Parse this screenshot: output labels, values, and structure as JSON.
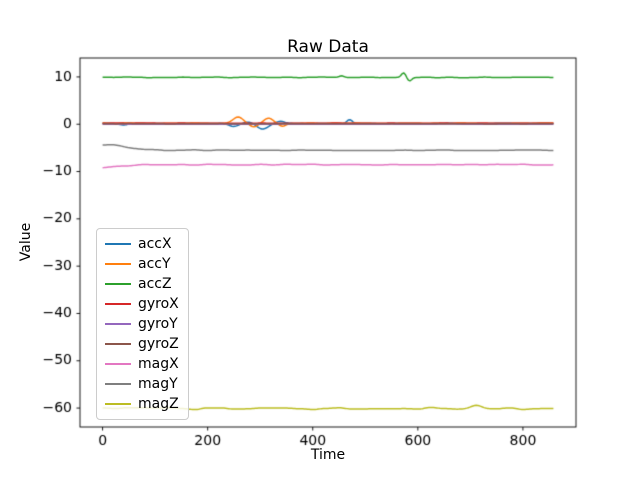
{
  "chart_data": {
    "type": "line",
    "title": "Raw Data",
    "xlabel": "Time",
    "ylabel": "Value",
    "xlim": [
      -43,
      901
    ],
    "ylim": [
      -64,
      14
    ],
    "x_range": [
      0,
      858
    ],
    "sample_step": 3,
    "xticks": [
      0,
      200,
      400,
      600,
      800
    ],
    "xtick_labels": [
      "0",
      "200",
      "400",
      "600",
      "800"
    ],
    "yticks": [
      10,
      0,
      -10,
      -20,
      -30,
      -40,
      -50,
      -60
    ],
    "ytick_labels": [
      "10",
      "0",
      "−10",
      "−20",
      "−30",
      "−40",
      "−50",
      "−60"
    ],
    "grid": false,
    "legend_position": "center-left-inside",
    "background": "#ffffff",
    "axis_color": "#000000",
    "legend_edge_color": "#cccccc",
    "series": [
      {
        "name": "accX",
        "color": "#1f77b4",
        "baseline": 0.15,
        "noise_amp": 0.07,
        "noise_step": 22,
        "seed": 11,
        "features": [
          {
            "x": 40,
            "w": 12,
            "a": -0.35
          },
          {
            "x": 250,
            "w": 12,
            "a": -0.6
          },
          {
            "x": 278,
            "w": 10,
            "a": 0.35
          },
          {
            "x": 305,
            "w": 14,
            "a": -1.15
          },
          {
            "x": 338,
            "w": 10,
            "a": 0.45
          },
          {
            "x": 470,
            "w": 7,
            "a": 0.85
          }
        ]
      },
      {
        "name": "accY",
        "color": "#ff7f0e",
        "baseline": 0.2,
        "noise_amp": 0.07,
        "noise_step": 22,
        "seed": 22,
        "features": [
          {
            "x": 258,
            "w": 13,
            "a": 1.35
          },
          {
            "x": 288,
            "w": 11,
            "a": -0.75
          },
          {
            "x": 316,
            "w": 12,
            "a": 1.05
          },
          {
            "x": 342,
            "w": 9,
            "a": -0.6
          }
        ]
      },
      {
        "name": "accZ",
        "color": "#2ca02c",
        "baseline": 9.9,
        "noise_amp": 0.07,
        "noise_step": 22,
        "seed": 33,
        "features": [
          {
            "x": 455,
            "w": 6,
            "a": 0.35
          },
          {
            "x": 573,
            "w": 6,
            "a": 1.0
          },
          {
            "x": 584,
            "w": 6,
            "a": -0.75
          }
        ]
      },
      {
        "name": "gyroX",
        "color": "#d62728",
        "baseline": 0.22,
        "noise_amp": 0.03,
        "noise_step": 25,
        "seed": 44,
        "features": []
      },
      {
        "name": "gyroY",
        "color": "#9467bd",
        "baseline": 0.0,
        "noise_amp": 0.03,
        "noise_step": 25,
        "seed": 55,
        "features": []
      },
      {
        "name": "gyroZ",
        "color": "#8c564b",
        "baseline": 0.1,
        "noise_amp": 0.03,
        "noise_step": 25,
        "seed": 66,
        "features": []
      },
      {
        "name": "magX",
        "color": "#e377c2",
        "baseline": -8.55,
        "noise_amp": 0.09,
        "noise_step": 25,
        "seed": 77,
        "features": [
          {
            "x": -15,
            "w": 60,
            "a": -0.6
          }
        ]
      },
      {
        "name": "magY",
        "color": "#7f7f7f",
        "baseline": -5.5,
        "noise_amp": 0.09,
        "noise_step": 25,
        "seed": 88,
        "features": [
          {
            "x": 5,
            "w": 55,
            "a": 1.2
          }
        ]
      },
      {
        "name": "magZ",
        "color": "#bcbd22",
        "baseline": -60.1,
        "noise_amp": 0.22,
        "noise_step": 25,
        "seed": 99,
        "features": [
          {
            "x": 712,
            "w": 14,
            "a": 0.7
          }
        ]
      }
    ]
  }
}
